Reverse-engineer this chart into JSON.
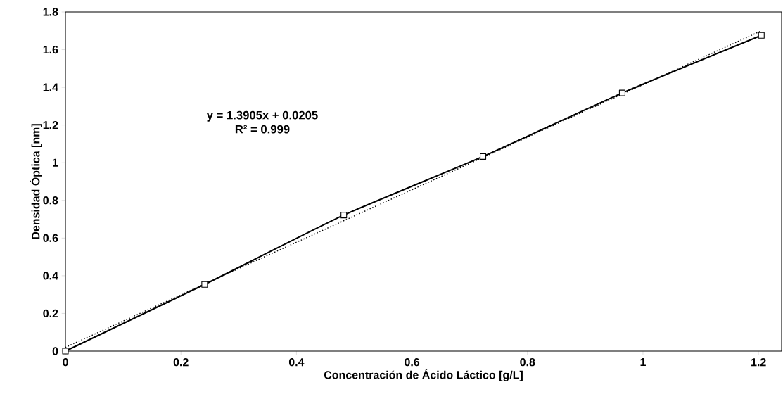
{
  "chart_data": {
    "type": "line",
    "xlabel": "Concentración de Ácido Láctico [g/L]",
    "ylabel": "Densidad Óptica [nm]",
    "annotations": [
      "y = 1.3905x + 0.0205",
      "R² = 0.999"
    ],
    "x": [
      0,
      0.241,
      0.482,
      0.723,
      0.964,
      1.205
    ],
    "series": [
      {
        "color": "#000000",
        "values": [
          0,
          0.354,
          0.722,
          1.033,
          1.37,
          1.676
        ],
        "marker": "square",
        "line_style": "solid"
      },
      {
        "type": "line",
        "color": "#000000",
        "x": [
          0,
          1.205
        ],
        "values": [
          0.02,
          1.7
        ],
        "marker": "none",
        "line_style": "dotted"
      }
    ],
    "xlim": [
      0,
      1.24
    ],
    "ylim": [
      0,
      1.8
    ],
    "xticks": [
      0,
      0.2,
      0.4,
      0.6,
      0.8,
      1,
      1.2
    ],
    "yticks": [
      0,
      0.2,
      0.4,
      0.6,
      0.8,
      1,
      1.2,
      1.4,
      1.6,
      1.8
    ],
    "grid": false
  }
}
